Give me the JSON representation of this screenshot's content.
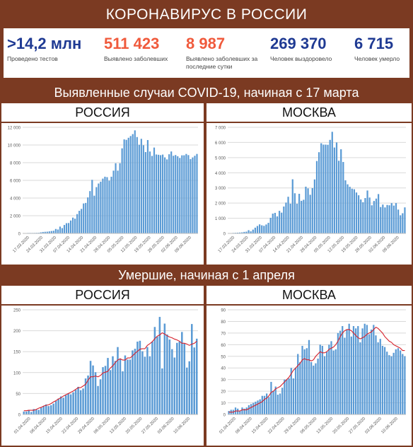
{
  "header": {
    "title": "КОРОНАВИРУС В РОССИИ"
  },
  "stats": [
    {
      "value": ">14,2 млн",
      "label": "Проведено тестов",
      "color": "#1f3a93"
    },
    {
      "value": "511 423",
      "label": "Выявлено заболевших",
      "color": "#f05a3c"
    },
    {
      "value": "8 987",
      "label": "Выявлено заболевших за последние сутки",
      "color": "#f05a3c"
    },
    {
      "value": "269 370",
      "label": "Человек выздоровело",
      "color": "#1f3a93"
    },
    {
      "value": "6 715",
      "label": "Человек умерло",
      "color": "#1f3a93"
    }
  ],
  "sections": {
    "cases": "Выявленные случаи COVID-19, начиная с 17 марта",
    "deaths": "Умершие, начиная с 1 апреля"
  },
  "chart_data": [
    {
      "type": "bar",
      "title": "РОССИЯ",
      "ylim": [
        0,
        12000
      ],
      "yticks": [
        "0",
        "2 000",
        "4 000",
        "6 000",
        "8 000",
        "10 000",
        "12 000"
      ],
      "xticks": [
        "17.03.2020",
        "24.03.2020",
        "31.03.2020",
        "07.04.2020",
        "14.04.2020",
        "21.04.2020",
        "28.04.2020",
        "05.05.2020",
        "12.05.2020",
        "19.05.2020",
        "26.05.2020",
        "02.06.2020",
        "09.06.2020"
      ],
      "series": [
        {
          "values": [
            21,
            33,
            52,
            54,
            53,
            57,
            65,
            71,
            120,
            163,
            182,
            196,
            228,
            270,
            302,
            501,
            440,
            771,
            601,
            954,
            1154,
            1175,
            1459,
            1786,
            1667,
            2186,
            2558,
            2774,
            3388,
            3448,
            4070,
            4785,
            6060,
            4268,
            5236,
            5642,
            5849,
            6198,
            6411,
            6361,
            5966,
            6411,
            7099,
            7933,
            7099,
            7933,
            9623,
            10633,
            10581,
            10817,
            11012,
            11231,
            11656,
            10899,
            10028,
            10699,
            9974,
            9200,
            10559,
            9263,
            8764,
            9709,
            8926,
            8894,
            8849,
            8915,
            8599,
            8371,
            8952,
            9268,
            8779,
            8863,
            8726,
            8536,
            8831,
            8835,
            8985,
            8855,
            8404,
            8595,
            8779,
            8987
          ]
        }
      ],
      "grid": true,
      "bar_color": "#5b9bd5"
    },
    {
      "type": "bar",
      "title": "МОСКВА",
      "ylim": [
        0,
        7000
      ],
      "yticks": [
        "0",
        "1 000",
        "2 000",
        "3 000",
        "4 000",
        "5 000",
        "6 000",
        "7 000"
      ],
      "xticks": [
        "17.03.2020",
        "24.03.2020",
        "31.03.2020",
        "07.04.2020",
        "14.04.2020",
        "21.04.2020",
        "28.04.2020",
        "05.05.2020",
        "12.05.2020",
        "19.05.2020",
        "26.05.2020",
        "02.06.2020",
        "09.06.2020"
      ],
      "series": [
        {
          "values": [
            10,
            20,
            33,
            40,
            48,
            57,
            70,
            98,
            115,
            212,
            135,
            250,
            379,
            491,
            595,
            534,
            499,
            589,
            697,
            1030,
            1306,
            1355,
            1124,
            1489,
            1370,
            1774,
            2034,
            2418,
            1959,
            3570,
            2649,
            1959,
            2612,
            2151,
            2220,
            3083,
            2971,
            2548,
            2988,
            3561,
            4775,
            5358,
            5948,
            5858,
            5858,
            5846,
            6169,
            6703,
            5667,
            6001,
            4794,
            5551,
            4712,
            3505,
            3238,
            3075,
            2949,
            2913,
            2699,
            2516,
            2238,
            2054,
            2332,
            2830,
            2367,
            1855,
            2140,
            2297,
            2595,
            1741,
            1903,
            1715,
            1877,
            1855,
            1998,
            1835,
            2001,
            1572,
            1195,
            1330,
            1717
          ]
        }
      ],
      "grid": true,
      "bar_color": "#5b9bd5"
    },
    {
      "type": "bar",
      "title": "РОССИЯ",
      "ylim": [
        0,
        250
      ],
      "yticks": [
        "0",
        "50",
        "100",
        "150",
        "200",
        "250"
      ],
      "xticks": [
        "01.04.2020",
        "08.04.2020",
        "15.04.2020",
        "22.04.2020",
        "29.04.2020",
        "06.05.2020",
        "13.05.2020",
        "20.05.2020",
        "27.05.2020",
        "03.06.2020",
        "10.06.2020"
      ],
      "series": [
        {
          "values": [
            7,
            7,
            11,
            6,
            13,
            12,
            11,
            16,
            20,
            24,
            20,
            22,
            26,
            32,
            38,
            43,
            40,
            46,
            50,
            48,
            53,
            59,
            66,
            58,
            62,
            86,
            93,
            128,
            117,
            101,
            68,
            84,
            113,
            116,
            135,
            106,
            139,
            128,
            161,
            132,
            103,
            141,
            131,
            131,
            153,
            157,
            174,
            176,
            151,
            138,
            161,
            139,
            174,
            209,
            186,
            233,
            110,
            217,
            191,
            179,
            156,
            136,
            171,
            174,
            197,
            169,
            112,
            127,
            216,
            160,
            181
          ]
        },
        {
          "values": [
            9,
            9,
            10,
            10,
            10,
            12,
            15,
            17,
            20,
            22,
            23,
            26,
            30,
            33,
            37,
            40,
            44,
            47,
            50,
            53,
            56,
            60,
            64,
            64,
            68,
            72,
            82,
            90,
            90,
            92,
            90,
            93,
            99,
            101,
            103,
            111,
            116,
            124,
            130,
            133,
            130,
            130,
            135,
            135,
            140,
            146,
            151,
            156,
            157,
            157,
            165,
            169,
            174,
            181,
            187,
            190,
            195,
            192,
            188,
            185,
            183,
            180,
            178,
            175,
            170,
            170,
            168,
            165,
            168,
            170,
            175
          ]
        }
      ],
      "grid": true,
      "bar_color": "#5b9bd5",
      "line_color": "#d6202a"
    },
    {
      "type": "bar",
      "title": "МОСКВА",
      "ylim": [
        0,
        90
      ],
      "yticks": [
        "0",
        "10",
        "20",
        "30",
        "40",
        "50",
        "60",
        "70",
        "80",
        "90"
      ],
      "xticks": [
        "01.04.2020",
        "08.04.2020",
        "15.04.2020",
        "22.04.2020",
        "29.04.2020",
        "06.05.2020",
        "13.05.2020",
        "20.05.2020",
        "27.05.2020",
        "03.06.2020",
        "10.06.2020"
      ],
      "series": [
        {
          "values": [
            3,
            4,
            4,
            6,
            5,
            3,
            6,
            5,
            6,
            8,
            9,
            10,
            11,
            12,
            13,
            16,
            16,
            18,
            15,
            28,
            20,
            24,
            17,
            18,
            23,
            30,
            30,
            31,
            40,
            31,
            40,
            52,
            45,
            59,
            56,
            57,
            64,
            45,
            42,
            44,
            48,
            60,
            59,
            50,
            54,
            60,
            63,
            55,
            56,
            70,
            72,
            76,
            66,
            73,
            78,
            67,
            76,
            74,
            76,
            62,
            74,
            78,
            77,
            69,
            73,
            77,
            68,
            62,
            65,
            59,
            58,
            54,
            51,
            50,
            53,
            56,
            57,
            55,
            52,
            50
          ]
        },
        {
          "values": [
            2,
            2,
            2,
            3,
            3,
            3,
            4,
            4,
            4,
            5,
            6,
            7,
            8,
            9,
            10,
            11,
            13,
            14,
            16,
            19,
            20,
            22,
            23,
            24,
            26,
            28,
            30,
            32,
            35,
            38,
            40,
            42,
            44,
            47,
            48,
            47,
            47,
            46,
            47,
            50,
            52,
            54,
            53,
            53,
            54,
            56,
            57,
            58,
            60,
            63,
            67,
            70,
            72,
            73,
            73,
            72,
            70,
            68,
            66,
            65,
            66,
            67,
            69,
            70,
            71,
            73,
            75,
            74,
            72,
            70,
            67,
            65,
            63,
            62,
            60,
            59,
            58,
            57,
            55,
            55
          ]
        }
      ],
      "grid": true,
      "bar_color": "#5b9bd5",
      "line_color": "#d6202a"
    }
  ]
}
